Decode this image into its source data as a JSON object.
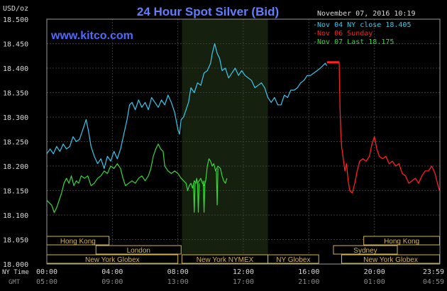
{
  "chart_data": {
    "type": "line",
    "title": "24 Hour Spot Silver (Bid)",
    "watermark": "www.kitco.com",
    "timestamp": "November 07, 2016 10:19",
    "ylabel": "USD/oz",
    "ylim": [
      18.0,
      18.5
    ],
    "y_ticks": [
      "18.000",
      "18.050",
      "18.100",
      "18.150",
      "18.200",
      "18.250",
      "18.300",
      "18.350",
      "18.400",
      "18.450",
      "18.500"
    ],
    "xlim_hours": [
      0,
      24
    ],
    "x_row_labels": {
      "ny": "NY Time",
      "gmt": "GMT"
    },
    "x_ticks_ny": [
      "00:00",
      "04:00",
      "08:00",
      "12:00",
      "16:00",
      "20:00",
      "23:59"
    ],
    "x_ticks_gmt": [
      "05:00",
      "09:00",
      "13:00",
      "17:00",
      "21:00",
      "01:00",
      "04:59"
    ],
    "colors": {
      "background": "#000000",
      "plot_area": "#000000",
      "nymex_highlight": "#16200f",
      "grid": "#3a3a3a",
      "axis_text": "#d8d8d8",
      "title": "#5f7fff",
      "watermark": "#4f6bff",
      "session_bar": "#d2b450"
    },
    "legend": [
      {
        "text": "Nov 04 NY close 18.405",
        "color": "#39c8f0"
      },
      {
        "text": "Nov 06 Sunday",
        "color": "#ff2020"
      },
      {
        "text": "Nov 07 Last 18.175",
        "color": "#38d838"
      }
    ],
    "nymex_session_hours": [
      8.25,
      13.5
    ],
    "series": [
      {
        "name": "Nov 04",
        "color": "#39c8f0",
        "points": [
          [
            0,
            18.225
          ],
          [
            0.2,
            18.235
          ],
          [
            0.4,
            18.225
          ],
          [
            0.6,
            18.24
          ],
          [
            0.8,
            18.23
          ],
          [
            1.0,
            18.245
          ],
          [
            1.2,
            18.235
          ],
          [
            1.4,
            18.24
          ],
          [
            1.6,
            18.26
          ],
          [
            1.8,
            18.25
          ],
          [
            2.0,
            18.255
          ],
          [
            2.2,
            18.275
          ],
          [
            2.4,
            18.295
          ],
          [
            2.55,
            18.27
          ],
          [
            2.7,
            18.24
          ],
          [
            2.9,
            18.22
          ],
          [
            3.1,
            18.205
          ],
          [
            3.3,
            18.215
          ],
          [
            3.5,
            18.195
          ],
          [
            3.7,
            18.22
          ],
          [
            3.9,
            18.21
          ],
          [
            4.1,
            18.23
          ],
          [
            4.3,
            18.215
          ],
          [
            4.5,
            18.235
          ],
          [
            4.7,
            18.265
          ],
          [
            4.9,
            18.295
          ],
          [
            5.05,
            18.325
          ],
          [
            5.2,
            18.33
          ],
          [
            5.4,
            18.315
          ],
          [
            5.6,
            18.335
          ],
          [
            5.8,
            18.32
          ],
          [
            6.0,
            18.33
          ],
          [
            6.2,
            18.315
          ],
          [
            6.4,
            18.34
          ],
          [
            6.6,
            18.33
          ],
          [
            6.8,
            18.32
          ],
          [
            7.0,
            18.335
          ],
          [
            7.2,
            18.325
          ],
          [
            7.4,
            18.345
          ],
          [
            7.6,
            18.33
          ],
          [
            7.8,
            18.31
          ],
          [
            8.0,
            18.275
          ],
          [
            8.1,
            18.265
          ],
          [
            8.2,
            18.295
          ],
          [
            8.35,
            18.3
          ],
          [
            8.5,
            18.315
          ],
          [
            8.65,
            18.33
          ],
          [
            8.8,
            18.36
          ],
          [
            9.0,
            18.35
          ],
          [
            9.2,
            18.37
          ],
          [
            9.4,
            18.365
          ],
          [
            9.6,
            18.39
          ],
          [
            9.8,
            18.395
          ],
          [
            10.0,
            18.41
          ],
          [
            10.1,
            18.43
          ],
          [
            10.25,
            18.45
          ],
          [
            10.4,
            18.43
          ],
          [
            10.55,
            18.42
          ],
          [
            10.7,
            18.395
          ],
          [
            10.9,
            18.4
          ],
          [
            11.1,
            18.38
          ],
          [
            11.3,
            18.39
          ],
          [
            11.5,
            18.4
          ],
          [
            11.7,
            18.385
          ],
          [
            11.9,
            18.395
          ],
          [
            12.1,
            18.385
          ],
          [
            12.3,
            18.38
          ],
          [
            12.5,
            18.375
          ],
          [
            12.7,
            18.36
          ],
          [
            12.9,
            18.365
          ],
          [
            13.1,
            18.37
          ],
          [
            13.3,
            18.36
          ],
          [
            13.5,
            18.34
          ],
          [
            13.7,
            18.33
          ],
          [
            13.9,
            18.34
          ],
          [
            14.1,
            18.325
          ],
          [
            14.3,
            18.325
          ],
          [
            14.5,
            18.345
          ],
          [
            14.7,
            18.34
          ],
          [
            14.9,
            18.355
          ],
          [
            15.1,
            18.355
          ],
          [
            15.3,
            18.36
          ],
          [
            15.5,
            18.37
          ],
          [
            15.7,
            18.375
          ],
          [
            15.9,
            18.385
          ],
          [
            16.1,
            18.385
          ],
          [
            16.3,
            18.39
          ],
          [
            16.5,
            18.395
          ],
          [
            16.7,
            18.4
          ],
          [
            16.85,
            18.405
          ],
          [
            17.0,
            18.41
          ],
          [
            17.1,
            18.405
          ]
        ]
      },
      {
        "name": "Nov 06",
        "color": "#ff2020",
        "points": [
          [
            17.1,
            18.412
          ],
          [
            17.85,
            18.412
          ],
          [
            17.85,
            18.412
          ],
          [
            17.9,
            18.32
          ],
          [
            17.95,
            18.27
          ],
          [
            18.0,
            18.24
          ],
          [
            18.1,
            18.215
          ],
          [
            18.2,
            18.19
          ],
          [
            18.3,
            18.205
          ],
          [
            18.4,
            18.17
          ],
          [
            18.5,
            18.15
          ],
          [
            18.65,
            18.145
          ],
          [
            18.8,
            18.165
          ],
          [
            18.95,
            18.19
          ],
          [
            19.1,
            18.21
          ],
          [
            19.3,
            18.215
          ],
          [
            19.5,
            18.21
          ],
          [
            19.7,
            18.22
          ],
          [
            19.85,
            18.245
          ],
          [
            20.0,
            18.26
          ],
          [
            20.15,
            18.235
          ],
          [
            20.3,
            18.22
          ],
          [
            20.5,
            18.215
          ],
          [
            20.7,
            18.22
          ],
          [
            20.9,
            18.205
          ],
          [
            21.1,
            18.21
          ],
          [
            21.3,
            18.2
          ],
          [
            21.5,
            18.205
          ],
          [
            21.7,
            18.185
          ],
          [
            21.9,
            18.18
          ],
          [
            22.1,
            18.165
          ],
          [
            22.3,
            18.17
          ],
          [
            22.5,
            18.175
          ],
          [
            22.7,
            18.165
          ],
          [
            22.9,
            18.18
          ],
          [
            23.1,
            18.19
          ],
          [
            23.3,
            18.19
          ],
          [
            23.5,
            18.2
          ],
          [
            23.7,
            18.185
          ],
          [
            23.85,
            18.165
          ],
          [
            23.98,
            18.15
          ]
        ]
      },
      {
        "name": "Nov 07",
        "color": "#38d838",
        "points": [
          [
            0,
            18.13
          ],
          [
            0.15,
            18.125
          ],
          [
            0.3,
            18.12
          ],
          [
            0.45,
            18.105
          ],
          [
            0.6,
            18.115
          ],
          [
            0.75,
            18.13
          ],
          [
            0.9,
            18.145
          ],
          [
            1.05,
            18.165
          ],
          [
            1.2,
            18.175
          ],
          [
            1.35,
            18.165
          ],
          [
            1.5,
            18.18
          ],
          [
            1.65,
            18.16
          ],
          [
            1.8,
            18.17
          ],
          [
            1.95,
            18.165
          ],
          [
            2.1,
            18.18
          ],
          [
            2.3,
            18.175
          ],
          [
            2.5,
            18.18
          ],
          [
            2.7,
            18.16
          ],
          [
            2.9,
            18.165
          ],
          [
            3.1,
            18.175
          ],
          [
            3.3,
            18.18
          ],
          [
            3.5,
            18.19
          ],
          [
            3.7,
            18.185
          ],
          [
            3.9,
            18.2
          ],
          [
            4.1,
            18.195
          ],
          [
            4.3,
            18.205
          ],
          [
            4.5,
            18.195
          ],
          [
            4.65,
            18.175
          ],
          [
            4.8,
            18.16
          ],
          [
            5.0,
            18.165
          ],
          [
            5.2,
            18.17
          ],
          [
            5.4,
            18.165
          ],
          [
            5.6,
            18.175
          ],
          [
            5.8,
            18.18
          ],
          [
            6.0,
            18.17
          ],
          [
            6.2,
            18.18
          ],
          [
            6.35,
            18.195
          ],
          [
            6.5,
            18.22
          ],
          [
            6.65,
            18.235
          ],
          [
            6.8,
            18.245
          ],
          [
            6.95,
            18.235
          ],
          [
            7.1,
            18.23
          ],
          [
            7.2,
            18.2
          ],
          [
            7.4,
            18.19
          ],
          [
            7.6,
            18.185
          ],
          [
            7.8,
            18.19
          ],
          [
            8.0,
            18.185
          ],
          [
            8.2,
            18.175
          ],
          [
            8.35,
            18.17
          ],
          [
            8.5,
            18.165
          ],
          [
            8.6,
            18.15
          ],
          [
            8.7,
            18.16
          ],
          [
            8.8,
            18.165
          ],
          [
            8.9,
            18.155
          ],
          [
            9.0,
            18.17
          ],
          [
            9.1,
            18.165
          ],
          [
            9.15,
            18.175
          ],
          [
            9.2,
            18.165
          ],
          [
            9.3,
            18.17
          ],
          [
            9.4,
            18.175
          ],
          [
            9.5,
            18.165
          ],
          [
            9.6,
            18.16
          ],
          [
            9.7,
            18.17
          ],
          [
            9.8,
            18.2
          ],
          [
            9.9,
            18.215
          ],
          [
            10.0,
            18.21
          ],
          [
            10.1,
            18.2
          ],
          [
            10.2,
            18.205
          ],
          [
            10.3,
            18.19
          ],
          [
            10.45,
            18.2
          ],
          [
            10.6,
            18.195
          ],
          [
            10.7,
            18.18
          ],
          [
            10.8,
            18.17
          ],
          [
            10.9,
            18.165
          ],
          [
            11.0,
            18.175
          ]
        ]
      },
      {
        "name": "Nov 07 spikes",
        "color": "#38d838",
        "segments": [
          [
            [
              8.95,
              18.165
            ],
            [
              9.0,
              18.105
            ],
            [
              9.05,
              18.165
            ]
          ],
          [
            [
              9.2,
              18.165
            ],
            [
              9.25,
              18.105
            ],
            [
              9.3,
              18.165
            ]
          ],
          [
            [
              9.55,
              18.17
            ],
            [
              9.6,
              18.105
            ],
            [
              9.65,
              18.17
            ]
          ],
          [
            [
              10.35,
              18.19
            ],
            [
              10.4,
              18.12
            ],
            [
              10.45,
              18.195
            ]
          ]
        ]
      }
    ],
    "sessions": [
      {
        "label": "Hong Kong",
        "start_hour": 0,
        "end_hour": 3.8,
        "row": 0
      },
      {
        "label": "Hong Kong",
        "start_hour": 19.35,
        "end_hour": 23.98,
        "row": 0
      },
      {
        "label": "London",
        "start_hour": 3.0,
        "end_hour": 8.2,
        "row": 1
      },
      {
        "label": "Sydney",
        "start_hour": 17.5,
        "end_hour": 21.4,
        "row": 1
      },
      {
        "label": "New York Globex",
        "start_hour": 0,
        "end_hour": 8.0,
        "row": 2
      },
      {
        "label": "New York NYMEX",
        "start_hour": 8.25,
        "end_hour": 13.5,
        "row": 2
      },
      {
        "label": "NY Globex",
        "start_hour": 13.5,
        "end_hour": 16.6,
        "row": 2
      },
      {
        "label": "New York Globex",
        "start_hour": 18.0,
        "end_hour": 23.98,
        "row": 2
      }
    ]
  }
}
